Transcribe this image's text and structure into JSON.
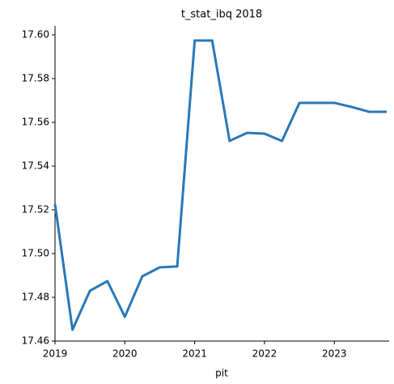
{
  "chart_data": {
    "type": "line",
    "title": "t_stat_ibq 2018",
    "x_label": "pit",
    "x": [
      2019,
      2019.25,
      2019.5,
      2019.75,
      2020,
      2020.25,
      2020.5,
      2020.75,
      2021,
      2021.25,
      2021.5,
      2021.75,
      2022,
      2022.25,
      2022.5,
      2022.75,
      2023,
      2023.25,
      2023.5,
      2023.75
    ],
    "series": [
      {
        "color": "#2878b8",
        "values": [
          17.5226,
          17.4652,
          17.483,
          17.4874,
          17.4711,
          17.4896,
          17.4937,
          17.4941,
          17.5974,
          17.5974,
          17.5515,
          17.5552,
          17.5548,
          17.5515,
          17.5689,
          17.5689,
          17.5689,
          17.567,
          17.5648,
          17.5648
        ]
      }
    ],
    "xlim": [
      2019,
      2023.75
    ],
    "xticks": [
      2019,
      2020,
      2021,
      2022,
      2023
    ],
    "ylim": [
      17.46,
      17.6
    ],
    "yticks": [
      {
        "value": 17.46,
        "label": "17.46"
      },
      {
        "value": 17.48,
        "label": "17.48"
      },
      {
        "value": 17.5,
        "label": "17.50"
      },
      {
        "value": 17.52,
        "label": "17.52"
      },
      {
        "value": 17.54,
        "label": "17.54"
      },
      {
        "value": 17.56,
        "label": "17.56"
      },
      {
        "value": 17.58,
        "label": "17.58"
      },
      {
        "value": 17.6,
        "label": "17.60"
      }
    ],
    "grid": false
  }
}
